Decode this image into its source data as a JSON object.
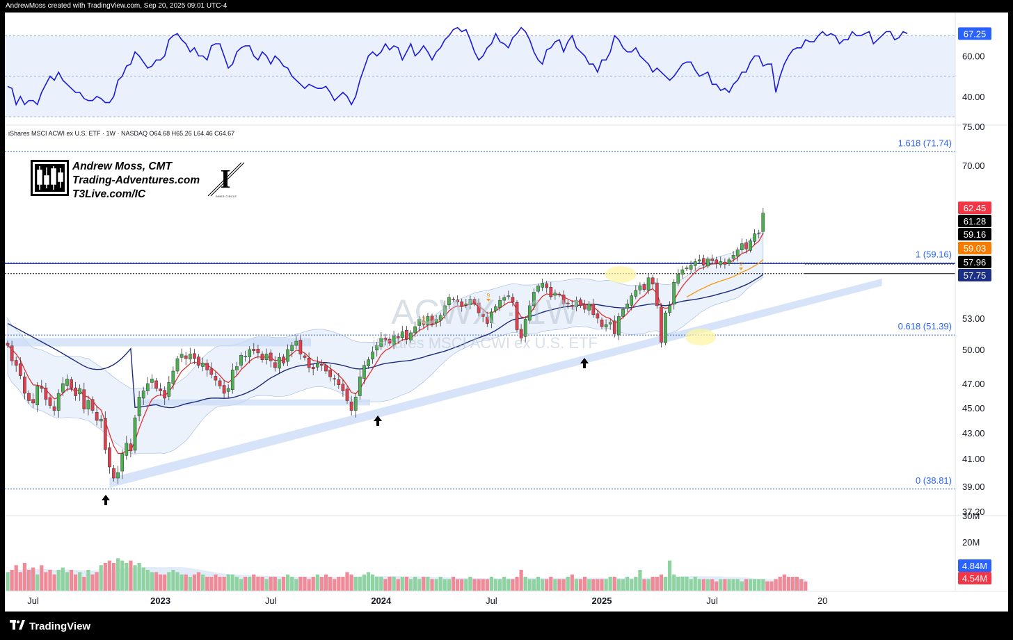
{
  "header": {
    "attribution": "AndrewMoss created with TradingView.com, Sep 20, 2025 09:01 UTC-4"
  },
  "legend": {
    "instrument": "iShares MSCI ACWI ex U.S. ETF · 1W · NASDAQ",
    "ohlc": "O64.68  H65.26  L64.46  C64.67"
  },
  "branding": {
    "name": "Andrew Moss, CMT",
    "site": "Trading-Adventures.com",
    "site2": "T3Live.com/IC",
    "seal_text": "INNER CIRCLE"
  },
  "watermark": {
    "ticker": "ACWX · 1W",
    "name": "iShares MSCI ACWI ex U.S. ETF"
  },
  "footer": {
    "logo_text": "TradingView"
  },
  "colors": {
    "rsi_line": "#1a1ad6",
    "rsi_band": "#eaf1fd",
    "up": "#4caf50",
    "down": "#e0404f",
    "ema_red": "#e03030",
    "ema_orange": "#f59b1b",
    "sma_navy": "#1a2a7a",
    "fib_blue": "#2962ff",
    "badge_blue": "#2962ff",
    "badge_red": "#f23645",
    "badge_black": "#000000",
    "badge_orange": "#f57c00",
    "badge_navy": "#1c2f87"
  },
  "chart_data": [
    {
      "type": "line",
      "name": "RSI pane",
      "ylim": [
        30,
        78
      ],
      "y_ticks": [
        "60.00",
        "40.00"
      ],
      "bands": [
        70,
        50,
        30
      ],
      "last_value": "67.25",
      "values": [
        45,
        44,
        36,
        40,
        36,
        38,
        38,
        36,
        42,
        46,
        50,
        48,
        52,
        48,
        46,
        44,
        42,
        42,
        39,
        38,
        38,
        40,
        39,
        37,
        37,
        40,
        48,
        50,
        55,
        56,
        62,
        60,
        57,
        54,
        55,
        58,
        58,
        60,
        68,
        70,
        71,
        68,
        66,
        62,
        64,
        60,
        60,
        58,
        65,
        66,
        66,
        60,
        54,
        56,
        62,
        64,
        65,
        65,
        60,
        58,
        62,
        60,
        56,
        60,
        58,
        55,
        54,
        50,
        48,
        46,
        44,
        46,
        45,
        44,
        44,
        45,
        42,
        38,
        40,
        42,
        40,
        36,
        40,
        48,
        54,
        60,
        62,
        60,
        62,
        66,
        63,
        65,
        64,
        58,
        62,
        66,
        60,
        62,
        65,
        62,
        58,
        62,
        64,
        68,
        70,
        73,
        74,
        72,
        73,
        68,
        62,
        58,
        60,
        64,
        66,
        71,
        67,
        66,
        64,
        69,
        71,
        74,
        72,
        68,
        62,
        58,
        56,
        63,
        64,
        67,
        68,
        62,
        67,
        70,
        64,
        62,
        60,
        56,
        56,
        52,
        58,
        58,
        62,
        70,
        68,
        64,
        62,
        62,
        64,
        60,
        58,
        56,
        52,
        54,
        52,
        50,
        48,
        50,
        53,
        56,
        57,
        57,
        53,
        50,
        51,
        52,
        46,
        46,
        43,
        44,
        42,
        46,
        48,
        52,
        52,
        57,
        60,
        60,
        55,
        56,
        56,
        42,
        50,
        56,
        60,
        63,
        64,
        64,
        68,
        67,
        67,
        70,
        72,
        70,
        71,
        70,
        66,
        68,
        68,
        72,
        70,
        70,
        71,
        72,
        66,
        68,
        70,
        72,
        72,
        68,
        69,
        72,
        71
      ]
    },
    {
      "type": "candlestick",
      "name": "ACWX weekly price",
      "ylim": [
        36.4,
        76.2
      ],
      "y_ticks": [
        "75.00",
        "70.00",
        "53.00",
        "50.00",
        "47.00",
        "45.00",
        "43.00",
        "41.00",
        "39.00",
        "37.20"
      ],
      "y_tick_values": [
        75,
        70,
        53,
        50,
        47,
        45,
        43,
        41,
        39,
        37.2
      ],
      "x_ticks": [
        "Jul",
        "2023",
        "Jul",
        "2024",
        "Jul",
        "2025",
        "Jul",
        "20"
      ],
      "x_tick_weeks": [
        6,
        36,
        62,
        88,
        114,
        140,
        166,
        192
      ],
      "price_labels": [
        {
          "text": "62.45",
          "kind": "badge_red"
        },
        {
          "text": "61.28",
          "kind": "badge_black"
        },
        {
          "text": "59.16",
          "kind": "badge_black"
        },
        {
          "text": "59.03",
          "kind": "badge_orange"
        },
        {
          "text": "57.96",
          "kind": "badge_black"
        },
        {
          "text": "57.75",
          "kind": "badge_navy"
        }
      ],
      "fib_levels": [
        {
          "label": "1.618 (71.74)",
          "value": 71.74
        },
        {
          "label": "1 (59.16)",
          "value": 59.16
        },
        {
          "label": "0.618 (51.39)",
          "value": 51.39
        },
        {
          "label": "0 (38.81)",
          "value": 38.81
        }
      ],
      "horizontal_dotted_levels": [
        59.03,
        57.96
      ],
      "anchors": {
        "start": 50.2,
        "drift": 0.068
      },
      "closes": [
        50.4,
        49.0,
        48.6,
        47.7,
        46.2,
        45.6,
        45.4,
        46.8,
        46.6,
        45.7,
        45.2,
        44.8,
        46.2,
        47.0,
        47.4,
        46.6,
        46.0,
        46.6,
        44.9,
        45.6,
        44.8,
        44.0,
        44.1,
        41.7,
        40.4,
        39.6,
        40.0,
        41.4,
        42.2,
        41.6,
        44.2,
        45.9,
        46.4,
        47.0,
        47.4,
        46.6,
        46.4,
        45.8,
        47.1,
        48.1,
        49.2,
        49.6,
        49.2,
        49.6,
        49.2,
        48.6,
        48.8,
        48.2,
        47.8,
        47.3,
        46.8,
        46.2,
        46.6,
        48.2,
        48.5,
        49.5,
        49.4,
        50.0,
        49.9,
        49.7,
        49.1,
        49.6,
        49.0,
        48.4,
        49.3,
        48.8,
        50.0,
        50.4,
        50.8,
        49.6,
        49.3,
        48.4,
        48.3,
        48.8,
        48.6,
        48.1,
        47.6,
        47.4,
        46.9,
        46.4,
        45.6,
        44.8,
        45.9,
        47.6,
        48.6,
        49.1,
        49.8,
        50.4,
        51.1,
        50.9,
        50.6,
        51.3,
        51.1,
        51.7,
        51.0,
        51.6,
        52.2,
        52.9,
        52.4,
        53.2,
        52.4,
        52.9,
        53.3,
        54.4,
        55.3,
        55.1,
        54.8,
        54.3,
        54.6,
        55.1,
        54.6,
        53.6,
        53.2,
        52.5,
        53.7,
        54.3,
        55.0,
        55.3,
        55.5,
        54.8,
        51.9,
        51.1,
        52.9,
        54.4,
        55.9,
        56.6,
        56.9,
        56.4,
        55.4,
        55.8,
        55.6,
        54.6,
        54.6,
        54.3,
        55.0,
        54.4,
        54.0,
        54.6,
        53.4,
        53.0,
        52.2,
        52.4,
        52.6,
        51.5,
        53.2,
        54.0,
        54.6,
        55.5,
        56.1,
        56.6,
        56.2,
        57.5,
        56.8,
        54.4,
        50.7,
        53.6,
        54.4,
        57.0,
        57.9,
        58.4,
        58.6,
        58.9,
        59.3,
        59.5,
        58.9,
        59.6,
        59.4,
        59.1,
        59.3,
        59.0,
        59.5,
        60.0,
        60.6,
        61.3,
        60.7,
        61.6,
        62.4,
        62.5,
        64.7
      ]
    },
    {
      "type": "bar",
      "name": "Volume",
      "ylim": [
        0,
        30
      ],
      "y_ticks": [
        "30M",
        "20M"
      ],
      "last_labels": [
        {
          "text": "4.84M",
          "kind": "badge_blue"
        },
        {
          "text": "4.54M",
          "kind": "badge_red"
        }
      ],
      "values": [
        8,
        9,
        11,
        8,
        12,
        9,
        10,
        7,
        11,
        8,
        9,
        7,
        9,
        10,
        8,
        9,
        7,
        8,
        6,
        9,
        7,
        8,
        11,
        12,
        13,
        12,
        14,
        13,
        12,
        13,
        11,
        12,
        10,
        9,
        8,
        8,
        7,
        7,
        8,
        9,
        8,
        7,
        7,
        6,
        7,
        8,
        7,
        6,
        6,
        7,
        6,
        6,
        7,
        7,
        6,
        5,
        6,
        6,
        7,
        6,
        6,
        5,
        6,
        6,
        5,
        6,
        7,
        6,
        5,
        6,
        6,
        5,
        6,
        7,
        6,
        7,
        6,
        5,
        6,
        6,
        8,
        7,
        6,
        6,
        7,
        8,
        7,
        6,
        6,
        5,
        6,
        6,
        5,
        6,
        6,
        5,
        6,
        5,
        6,
        6,
        5,
        5,
        6,
        5,
        5,
        6,
        5,
        5,
        5,
        6,
        5,
        5,
        5,
        5,
        6,
        5,
        5,
        6,
        5,
        5,
        6,
        9,
        6,
        5,
        5,
        6,
        5,
        5,
        6,
        5,
        5,
        5,
        6,
        7,
        5,
        5,
        6,
        5,
        5,
        5,
        5,
        5,
        6,
        6,
        5,
        5,
        6,
        5,
        6,
        9,
        5,
        5,
        6,
        6,
        7,
        6,
        13,
        7,
        6,
        6,
        6,
        5,
        6,
        5,
        5,
        5,
        5,
        4,
        5,
        5,
        5,
        5,
        5,
        4,
        5,
        5,
        5,
        5,
        5,
        4,
        4,
        5,
        6,
        7,
        6,
        6,
        6,
        5,
        4
      ]
    }
  ]
}
